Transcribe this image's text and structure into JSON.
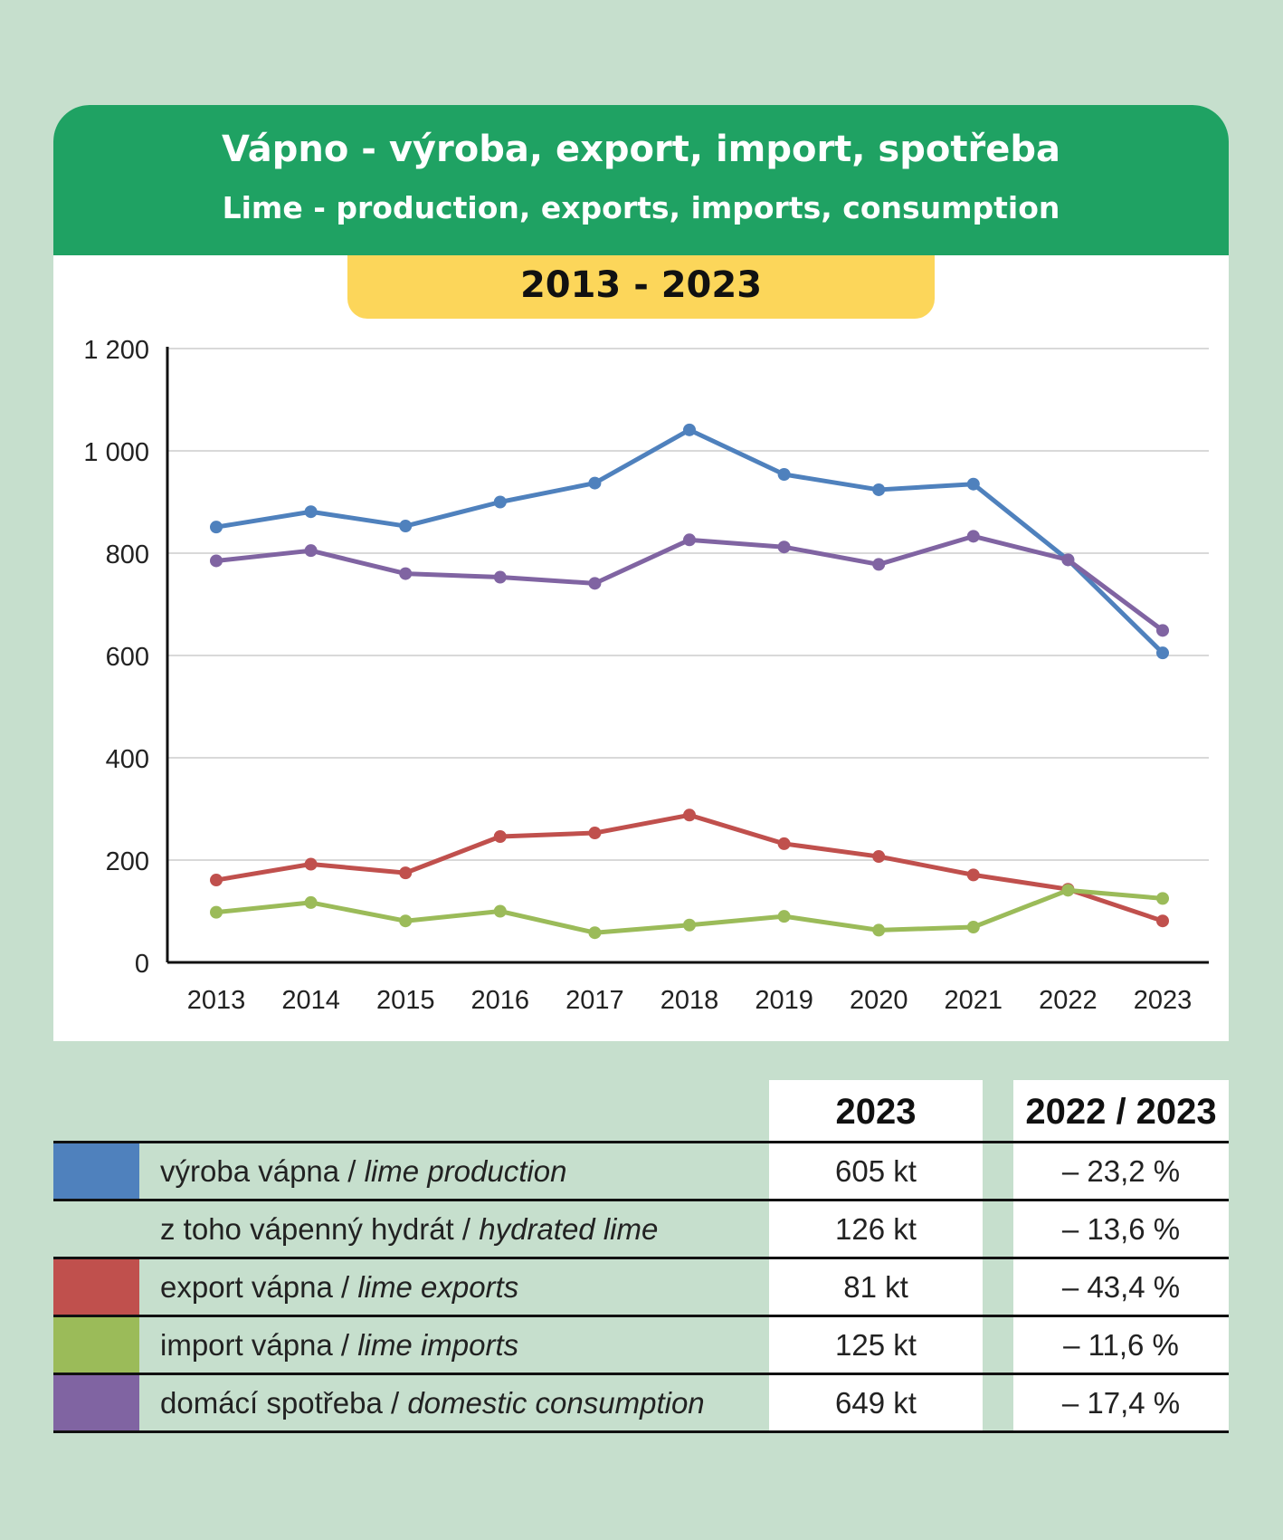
{
  "header": {
    "title_cz": "Vápno - výroba, export, import, spotřeba",
    "title_en": "Lime - production, exports, imports, consumption",
    "period": "2013 - 2023"
  },
  "chart_data": {
    "type": "line",
    "title": "Vápno - výroba, export, import, spotřeba / Lime - production, exports, imports, consumption",
    "x": [
      "2013",
      "2014",
      "2015",
      "2016",
      "2017",
      "2018",
      "2019",
      "2020",
      "2021",
      "2022",
      "2023"
    ],
    "yticks": [
      "0",
      "200",
      "400",
      "600",
      "800",
      "1 000",
      "1 200"
    ],
    "ylim": [
      0,
      1200
    ],
    "grid": true,
    "xlabel": "",
    "ylabel": "",
    "series": [
      {
        "name": "výroba vápna / lime production",
        "color": "#4f81bd",
        "values": [
          851,
          881,
          853,
          900,
          937,
          1041,
          954,
          924,
          935,
          787,
          605
        ]
      },
      {
        "name": "domácí spotřeba / domestic consumption",
        "color": "#8064a2",
        "values": [
          785,
          805,
          760,
          753,
          741,
          826,
          812,
          778,
          833,
          787,
          649
        ]
      },
      {
        "name": "export vápna / lime exports",
        "color": "#c0504d",
        "values": [
          161,
          192,
          175,
          246,
          253,
          288,
          232,
          207,
          171,
          143,
          81
        ]
      },
      {
        "name": "import vápna / lime imports",
        "color": "#9bbb59",
        "values": [
          98,
          117,
          81,
          100,
          58,
          73,
          90,
          63,
          69,
          141,
          125
        ]
      }
    ]
  },
  "table": {
    "headers": [
      "2023",
      "2022 / 2023"
    ],
    "rows": [
      {
        "cz": "výroba vápna / ",
        "en": "lime production",
        "value": "605 kt",
        "change": "– 23,2 %",
        "color": "#4f81bd"
      },
      {
        "cz": "z toho vápenný hydrát / ",
        "en": "hydrated lime",
        "value": "126 kt",
        "change": "– 13,6 %",
        "color": ""
      },
      {
        "cz": "export vápna / ",
        "en": "lime exports",
        "value": "81 kt",
        "change": "– 43,4 %",
        "color": "#c0504d"
      },
      {
        "cz": "import vápna / ",
        "en": "lime imports",
        "value": "125 kt",
        "change": "– 11,6 %",
        "color": "#9bbb59"
      },
      {
        "cz": "domácí spotřeba / ",
        "en": "domestic consumption",
        "value": "649 kt",
        "change": "– 17,4 %",
        "color": "#8064a2"
      }
    ]
  }
}
